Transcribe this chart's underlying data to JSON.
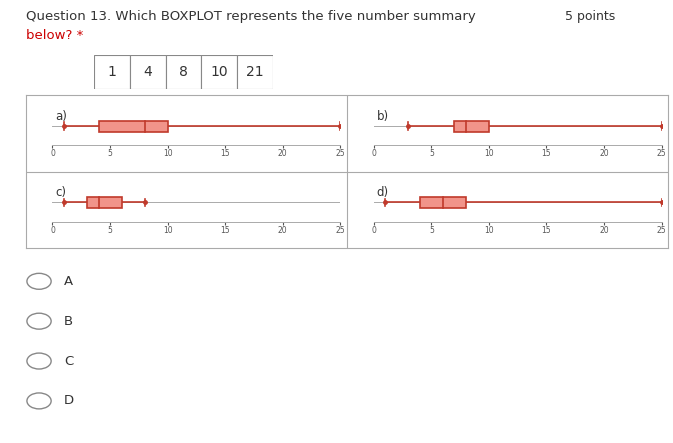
{
  "title_line1": "Question 13. Which BOXPLOT represents the five number summary",
  "title_line2": "below? *",
  "points_text": "5 points",
  "five_number_summary": [
    1,
    4,
    8,
    10,
    21
  ],
  "xlim": [
    0,
    25
  ],
  "xticks": [
    0,
    5,
    10,
    15,
    20,
    25
  ],
  "boxplots": {
    "a": {
      "min": 1,
      "q1": 4,
      "median": 8,
      "q3": 10,
      "max": 25
    },
    "b": {
      "min": 3,
      "q1": 7,
      "median": 8,
      "q3": 10,
      "max": 25
    },
    "c": {
      "min": 1,
      "q1": 3,
      "median": 4,
      "q3": 6,
      "max": 8
    },
    "d": {
      "min": 1,
      "q1": 4,
      "median": 6,
      "q3": 8,
      "max": 25
    }
  },
  "box_color": "#c0392b",
  "box_facecolor": "#f1948a",
  "line_color": "#c0392b",
  "bg_color": "#ffffff",
  "border_color": "#aaaaaa",
  "radio_options": [
    "A",
    "B",
    "C",
    "D"
  ],
  "font_color": "#333333",
  "red_color": "#cc0000"
}
